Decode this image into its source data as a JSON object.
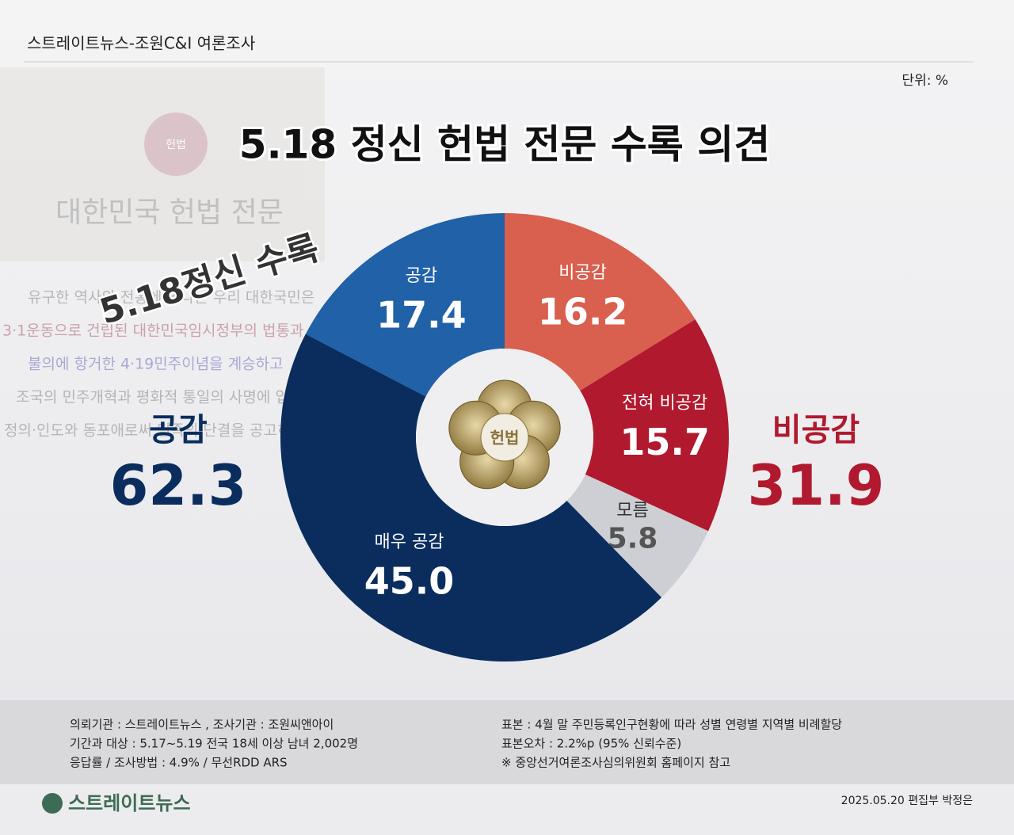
{
  "header": {
    "source": "스트레이트뉴스-조원C&I 여론조사",
    "unit": "단위: %"
  },
  "background": {
    "document_title": "대한민국 헌법 전문",
    "stamp_text": "헌법",
    "document_lines": [
      "유구한 역사와 전통에 빛나는 우리 대한국민은",
      "3·1운동으로 건립된 대한민국임시정부의 법통과",
      "불의에 항거한 4·19민주이념을 계승하고",
      "조국의 민주개혁과 평화적 통일의 사명에 입각하여",
      "정의·인도와 동포애로써 민족의 단결을 공고히 하고"
    ],
    "overlay": "5.18정신 수록"
  },
  "chart_data": {
    "type": "donut",
    "title": "5.18 정신 헌법 전문 수록 의견",
    "categories": [
      "비공감",
      "전혀 비공감",
      "모름",
      "매우 공감",
      "공감"
    ],
    "values": [
      16.2,
      15.7,
      5.8,
      45.0,
      17.4
    ],
    "value_labels": [
      "16.2",
      "15.7",
      "5.8",
      "45.0",
      "17.4"
    ],
    "colors": [
      "#d95f4e",
      "#b0192e",
      "#cdcfd4",
      "#0a2d5e",
      "#2061a8"
    ],
    "center_label": "헌법"
  },
  "summary": [
    {
      "label": "공감",
      "value": 62.3,
      "color": "#0a2d5e"
    },
    {
      "label": "비공감",
      "value": 31.9,
      "color": "#b0192e"
    }
  ],
  "footer": {
    "left": [
      "의뢰기관 : 스트레이트뉴스 ,     조사기관 : 조원씨앤아이",
      "기간과 대상 : 5.17~5.19   전국 18세 이상 남녀 2,002명",
      "응답률 / 조사방법 : 4.9%   / 무선RDD ARS"
    ],
    "right": [
      "표본 : 4월 말 주민등록인구현황에 따라 성별 연령별 지역별 비례할당",
      "표본오차 : 2.2%p (95% 신뢰수준)",
      "※ 중앙선거여론조사심의위원회 홈페이지 참고"
    ],
    "logo": "스트레이트뉴스",
    "credit": "2025.05.20 편집부 박정은"
  }
}
